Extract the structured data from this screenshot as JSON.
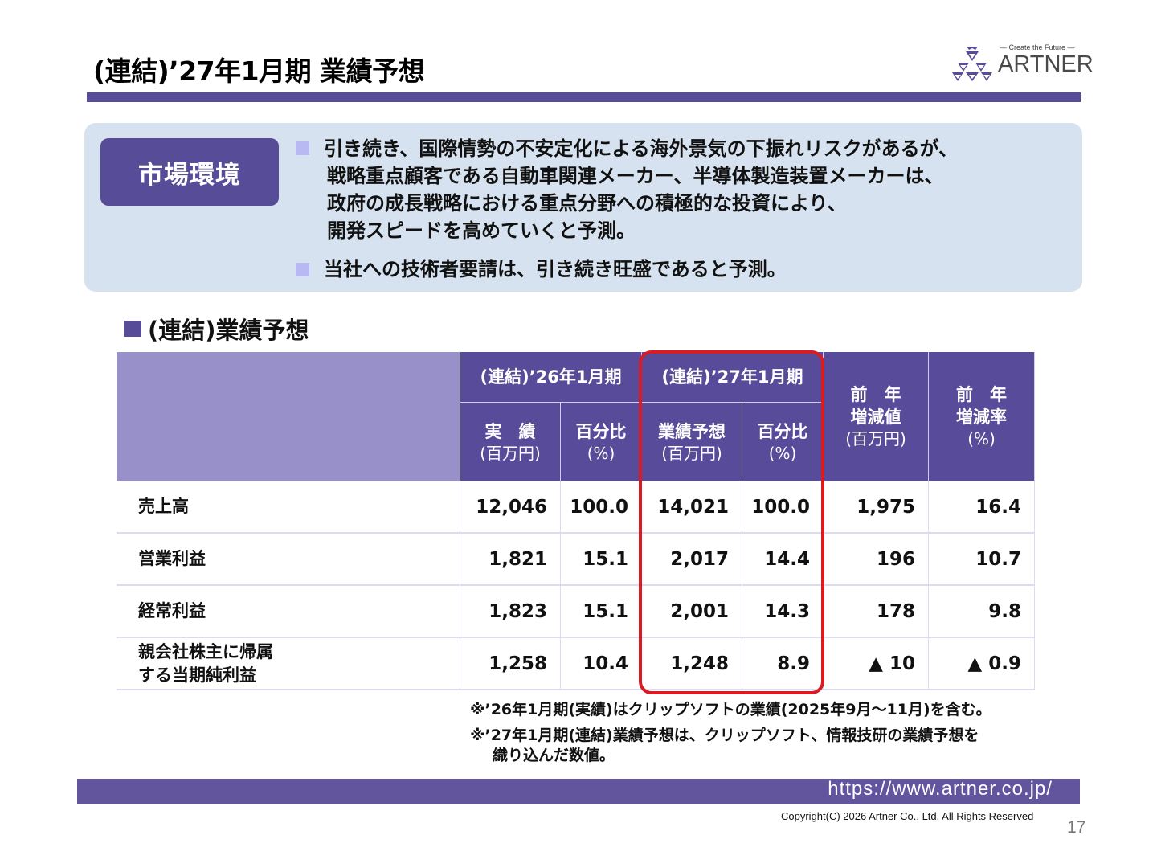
{
  "header": {
    "title": "(連結)’27年1月期 業績予想",
    "logo": {
      "tagline": "— Create the Future —",
      "wordmark": "ARTNER",
      "icon": "artner-logo-icon"
    }
  },
  "market": {
    "label": "市場環境",
    "bullets": [
      {
        "lines": [
          "引き続き、国際情勢の不安定化による海外景気の下振れリスクがあるが、",
          "戦略重点顧客である自動車関連メーカー、半導体製造装置メーカーは、",
          "政府の成長戦略における重点分野への積極的な投資により、",
          "開発スピードを高めていくと予測。"
        ]
      },
      {
        "lines": [
          "当社への技術者要請は、引き続き旺盛であると予測。"
        ]
      }
    ]
  },
  "section": {
    "title": "(連結)業績予想"
  },
  "table": {
    "group_headers": {
      "fy26": "(連結)’26年1月期",
      "fy27": "(連結)’27年1月期"
    },
    "columns": [
      {
        "main": "実　績",
        "sub": "(百万円)"
      },
      {
        "main": "百分比",
        "sub": "(%)"
      },
      {
        "main": "業績予想",
        "sub": "(百万円)"
      },
      {
        "main": "百分比",
        "sub": "(%)"
      },
      {
        "main1": "前　年",
        "main2": "増減値",
        "sub": "(百万円)"
      },
      {
        "main1": "前　年",
        "main2": "増減率",
        "sub": "(%)"
      }
    ],
    "rows": [
      {
        "label1": "売上高",
        "label2": "",
        "values": [
          "12,046",
          "100.0",
          "14,021",
          "100.0",
          "1,975",
          "16.4"
        ]
      },
      {
        "label1": "営業利益",
        "label2": "",
        "values": [
          "1,821",
          "15.1",
          "2,017",
          "14.4",
          "196",
          "10.7"
        ]
      },
      {
        "label1": "経常利益",
        "label2": "",
        "values": [
          "1,823",
          "15.1",
          "2,001",
          "14.3",
          "178",
          "9.8"
        ]
      },
      {
        "label1": "親会社株主に帰属",
        "label2": "する当期純利益",
        "values": [
          "1,258",
          "10.4",
          "1,248",
          "8.9",
          "▲ 10",
          "▲ 0.9"
        ]
      }
    ],
    "highlight_color": "#d91c24"
  },
  "notes": [
    "※’26年1月期(実績)はクリップソフトの業績(2025年9月～11月)を含む。",
    "※’27年1月期(連結)業績予想は、クリップソフト、情報技研の業績予想を",
    "織り込んだ数値。"
  ],
  "footer": {
    "url": "https://www.artner.co.jp/",
    "copyright": "Copyright(C) 2026 Artner Co., Ltd. All Rights Reserved",
    "page_number": "17"
  },
  "colors": {
    "brand_purple": "#574c98",
    "header_light": "#9890c9",
    "market_bg": "#d6e2ef",
    "bullet": "#b8b8f2",
    "highlight_red": "#d91c24"
  }
}
